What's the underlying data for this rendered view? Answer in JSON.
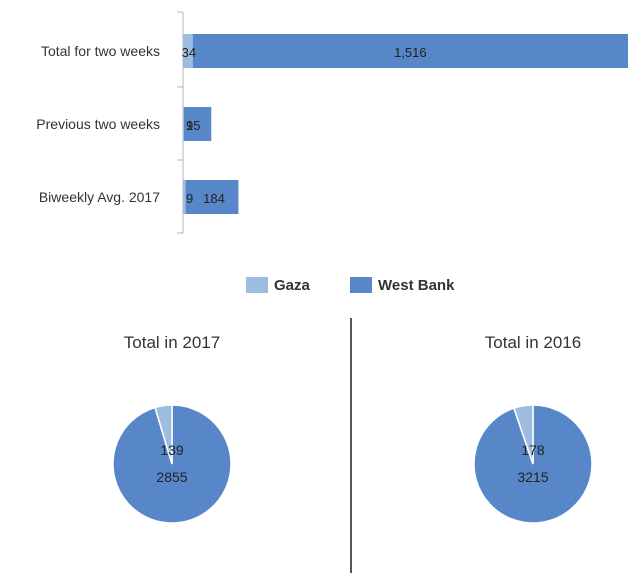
{
  "colors": {
    "gaza": "#9ebbe0",
    "west_bank": "#5887c9",
    "axis": "#b7b7b7",
    "divider": "#1e1e1e",
    "text": "#333333"
  },
  "legend": [
    {
      "label": "Gaza",
      "color": "#9ebbe0"
    },
    {
      "label": "West Bank",
      "color": "#5887c9"
    }
  ],
  "chart_data": [
    {
      "type": "bar",
      "orientation": "horizontal",
      "stacked": true,
      "categories": [
        "Total for two weeks",
        "Previous two weeks",
        "Biweekly Avg. 2017"
      ],
      "series": [
        {
          "name": "Gaza",
          "values": [
            34,
            1,
            9
          ],
          "labels": [
            "34",
            "1",
            "9"
          ]
        },
        {
          "name": "West Bank",
          "values": [
            1516,
            95,
            184
          ],
          "labels": [
            "1,516",
            "95",
            "184"
          ]
        }
      ],
      "xlim": [
        0,
        1550
      ],
      "legend_position": "bottom",
      "grid": false
    },
    {
      "type": "pie",
      "title": "Total in 2017",
      "slices": [
        {
          "name": "Gaza",
          "value": 139,
          "label": "139"
        },
        {
          "name": "West Bank",
          "value": 2855,
          "label": "2855"
        }
      ]
    },
    {
      "type": "pie",
      "title": "Total in 2016",
      "slices": [
        {
          "name": "Gaza",
          "value": 178,
          "label": "178"
        },
        {
          "name": "West Bank",
          "value": 3215,
          "label": "3215"
        }
      ]
    }
  ]
}
